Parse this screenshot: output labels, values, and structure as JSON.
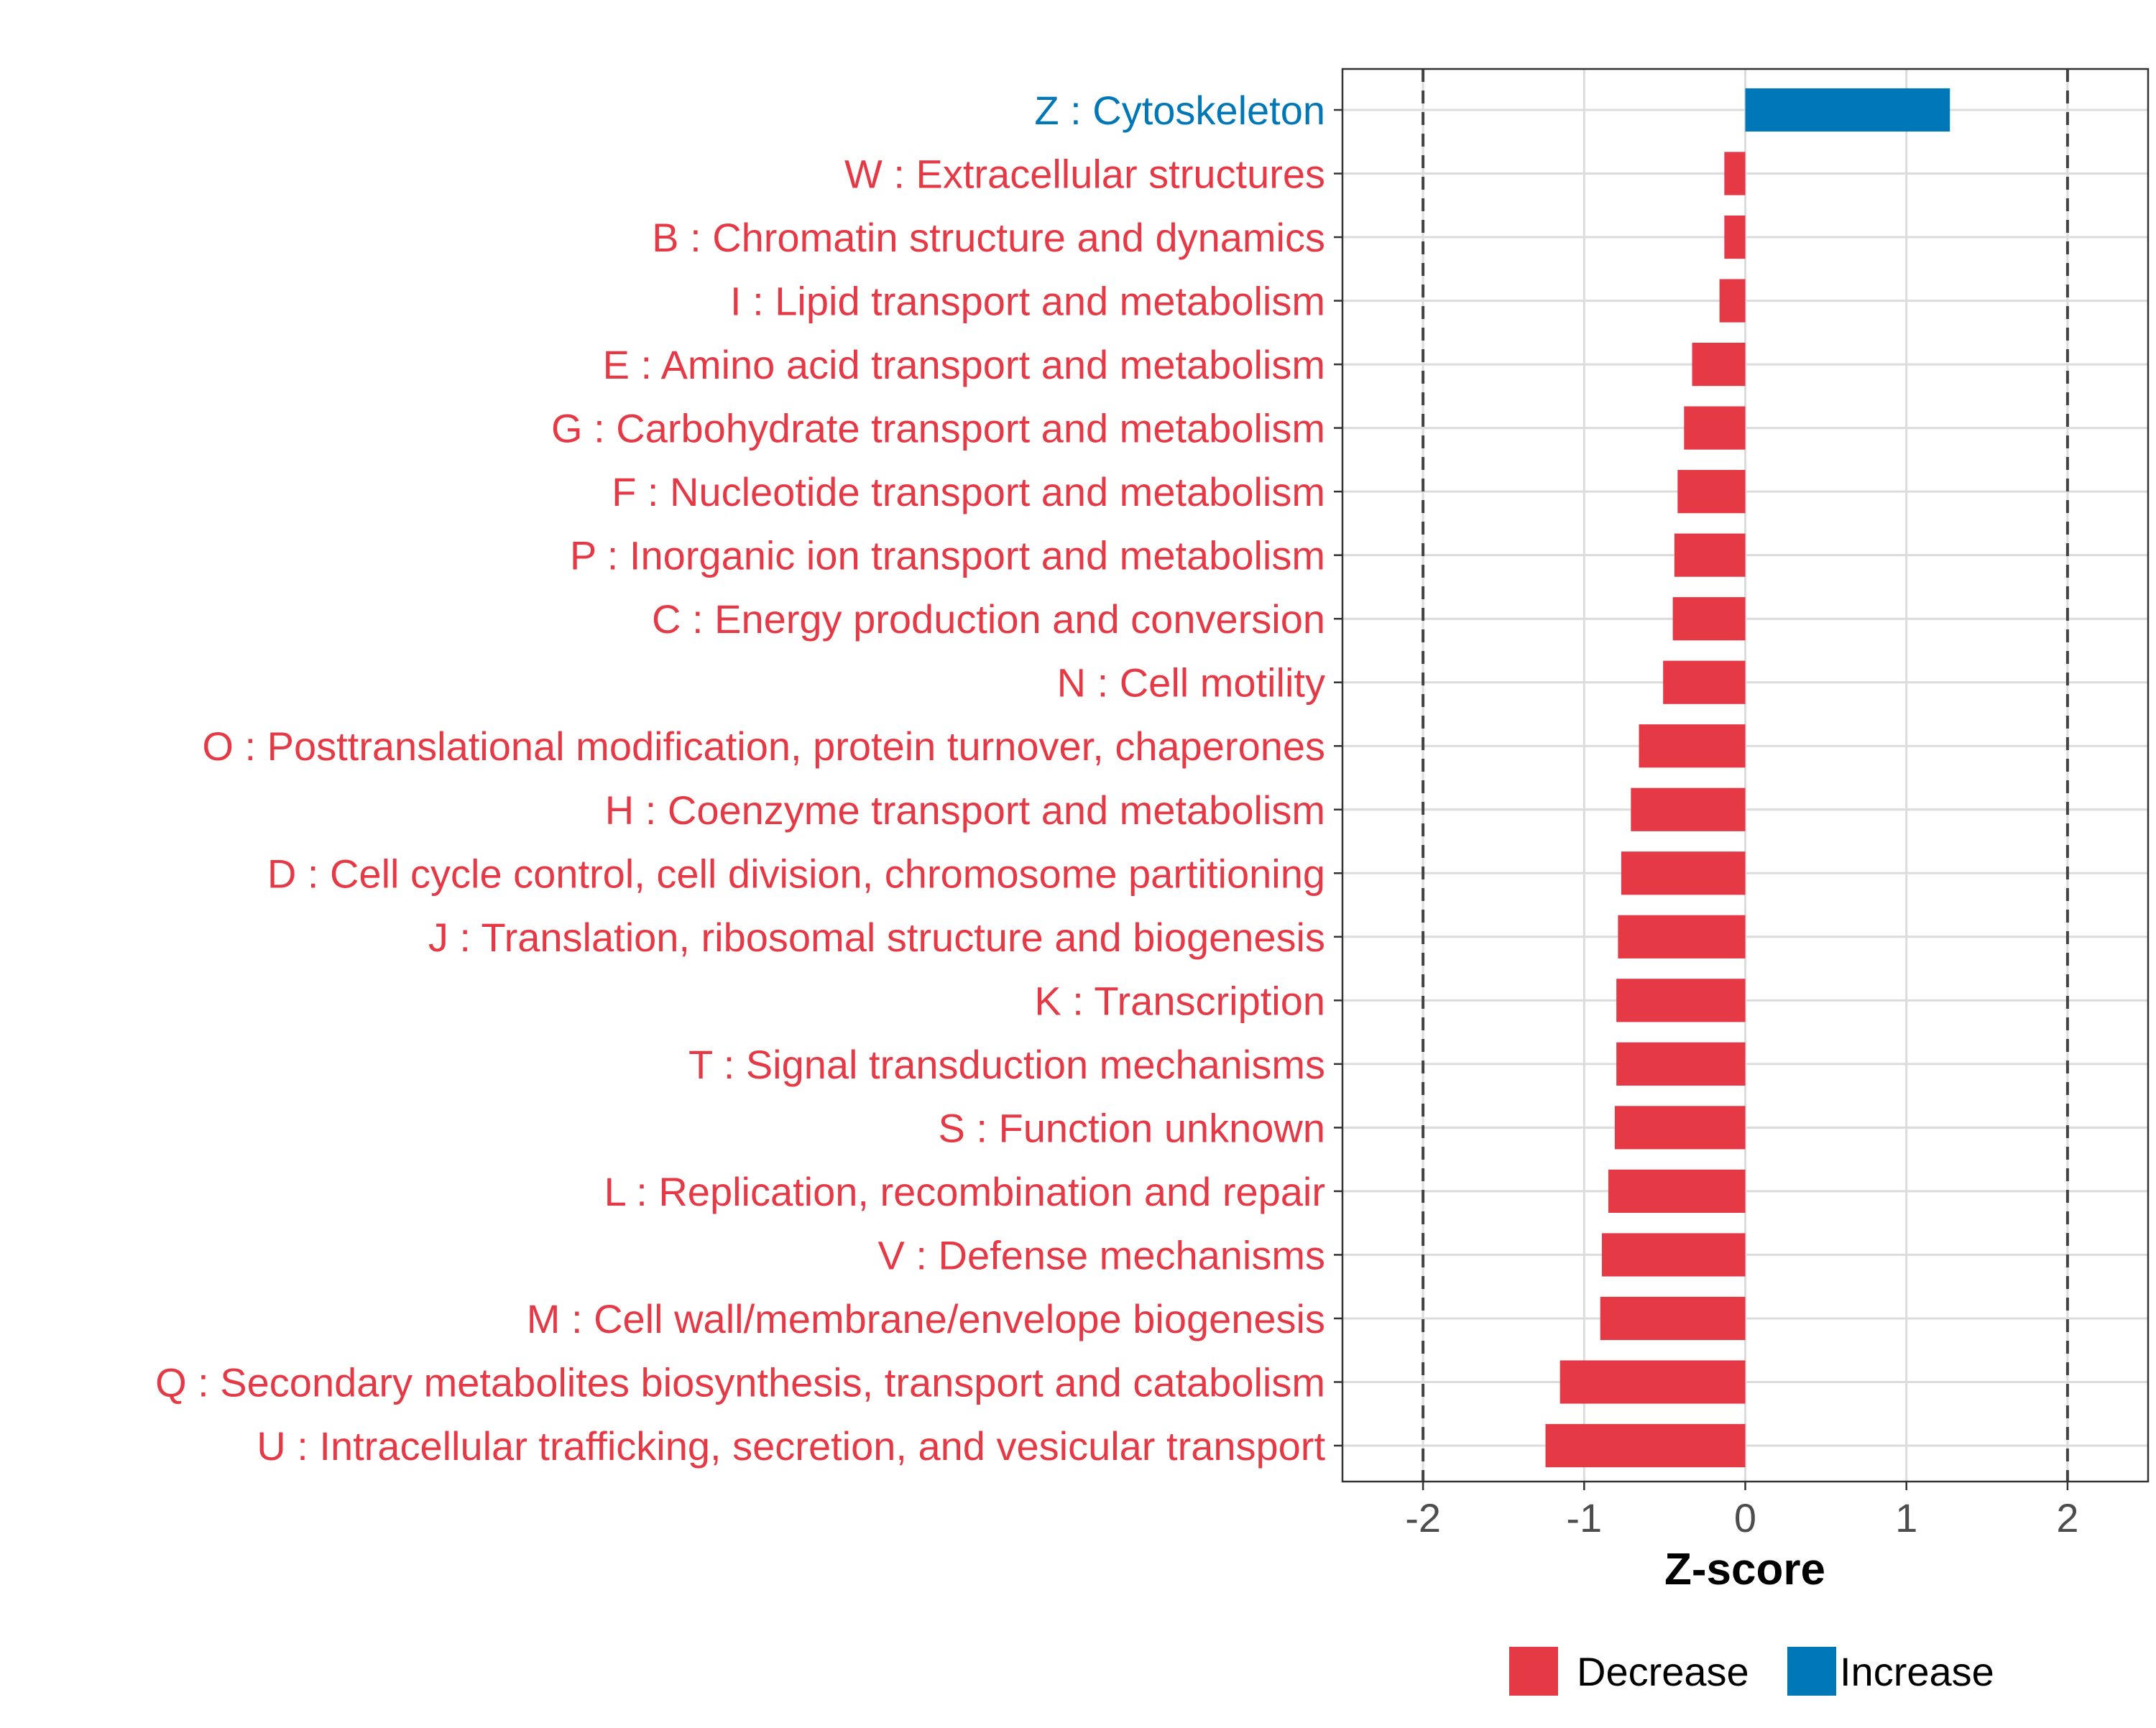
{
  "chart_data": {
    "type": "bar",
    "orientation": "horizontal",
    "title": "",
    "xlabel": "Z-score",
    "ylabel": "",
    "xlim": [
      -2.5,
      2.5
    ],
    "xticks": [
      -2,
      -1,
      0,
      1,
      2
    ],
    "xtick_labels": [
      "-2",
      "-1",
      "0",
      "1",
      "2"
    ],
    "reference_lines": [
      -2,
      2
    ],
    "grid": true,
    "legend": {
      "position": "bottom",
      "entries": [
        {
          "label": "Decrease",
          "color": "#E63946"
        },
        {
          "label": "Increase",
          "color": "#0077B6"
        }
      ]
    },
    "categories": [
      "Z : Cytoskeleton",
      "W : Extracellular structures",
      "B : Chromatin structure and dynamics",
      "I : Lipid transport and metabolism",
      "E : Amino acid transport and metabolism",
      "G : Carbohydrate transport and metabolism",
      "F : Nucleotide transport and metabolism",
      "P : Inorganic ion transport and metabolism",
      "C : Energy production and conversion",
      "N : Cell motility",
      "O : Posttranslational modification, protein turnover, chaperones",
      "H : Coenzyme transport and metabolism",
      "D : Cell cycle control, cell division, chromosome partitioning",
      "J : Translation, ribosomal structure and biogenesis",
      "K : Transcription",
      "T : Signal transduction mechanisms",
      "S : Function unknown",
      "L : Replication, recombination and repair",
      "V : Defense mechanisms",
      "M : Cell wall/membrane/envelope biogenesis",
      "Q : Secondary metabolites biosynthesis, transport and catabolism",
      "U : Intracellular trafficking, secretion, and vesicular transport"
    ],
    "values": [
      1.27,
      -0.13,
      -0.13,
      -0.16,
      -0.33,
      -0.38,
      -0.42,
      -0.44,
      -0.45,
      -0.51,
      -0.66,
      -0.71,
      -0.77,
      -0.79,
      -0.8,
      -0.8,
      -0.81,
      -0.85,
      -0.89,
      -0.9,
      -1.15,
      -1.24
    ],
    "colors": {
      "decrease": "#E63946",
      "increase": "#0077B6",
      "grid": "#DCDCDC",
      "axis_text": "#4D4D4D",
      "reference_line": "#444444"
    }
  }
}
